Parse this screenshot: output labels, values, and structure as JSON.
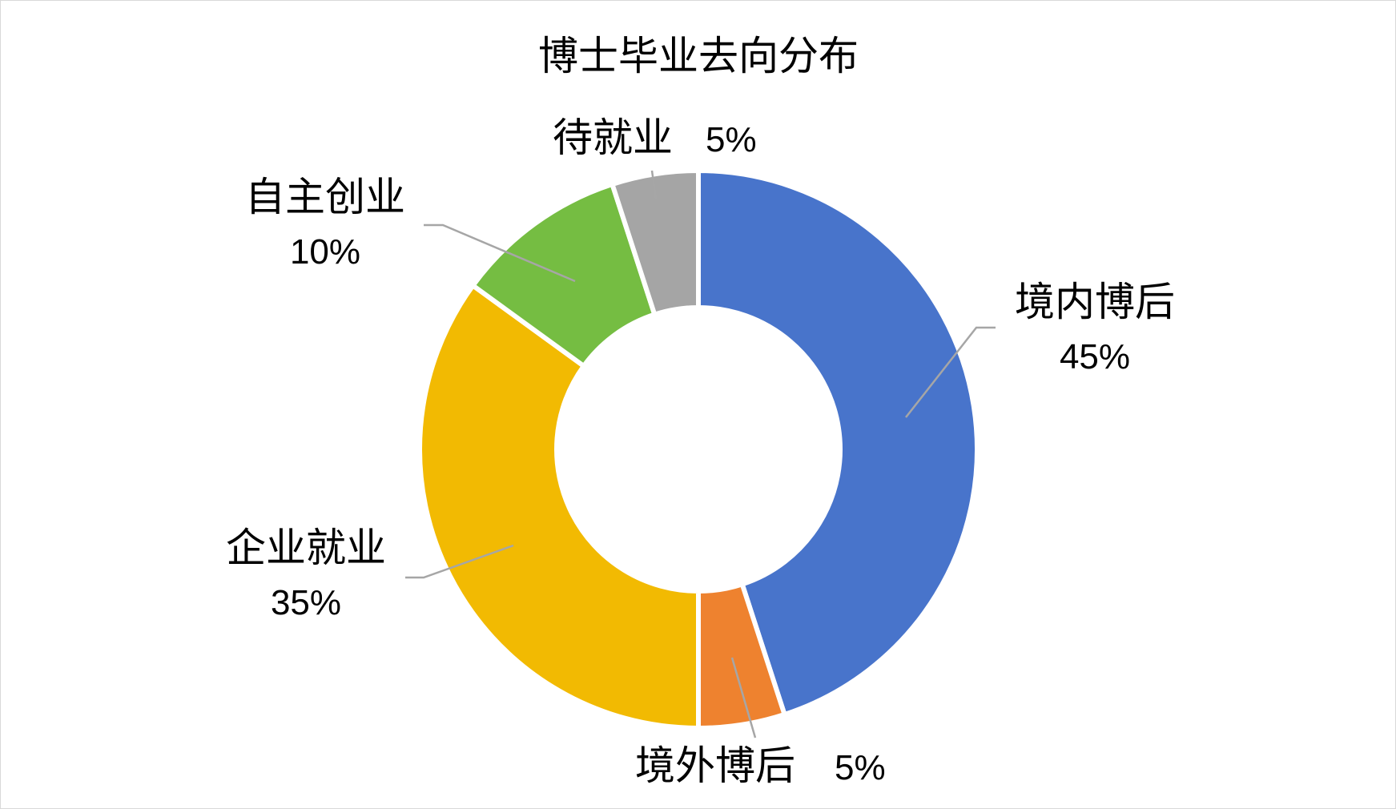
{
  "chart_data": {
    "type": "pie",
    "variant": "donut",
    "title": "博士毕业去向分布",
    "legend": "none",
    "slices": [
      {
        "name": "境内博后",
        "value": 45,
        "label": "45%",
        "color": "#4874CB"
      },
      {
        "name": "境外博后",
        "value": 5,
        "label": "5%",
        "color": "#EE822F"
      },
      {
        "name": "企业就业",
        "value": 35,
        "label": "35%",
        "color": "#F2BA02"
      },
      {
        "name": "自主创业",
        "value": 10,
        "label": "10%",
        "color": "#75BD42"
      },
      {
        "name": "待就业",
        "value": 5,
        "label": "5%",
        "color": "#A5A5A5"
      }
    ]
  }
}
